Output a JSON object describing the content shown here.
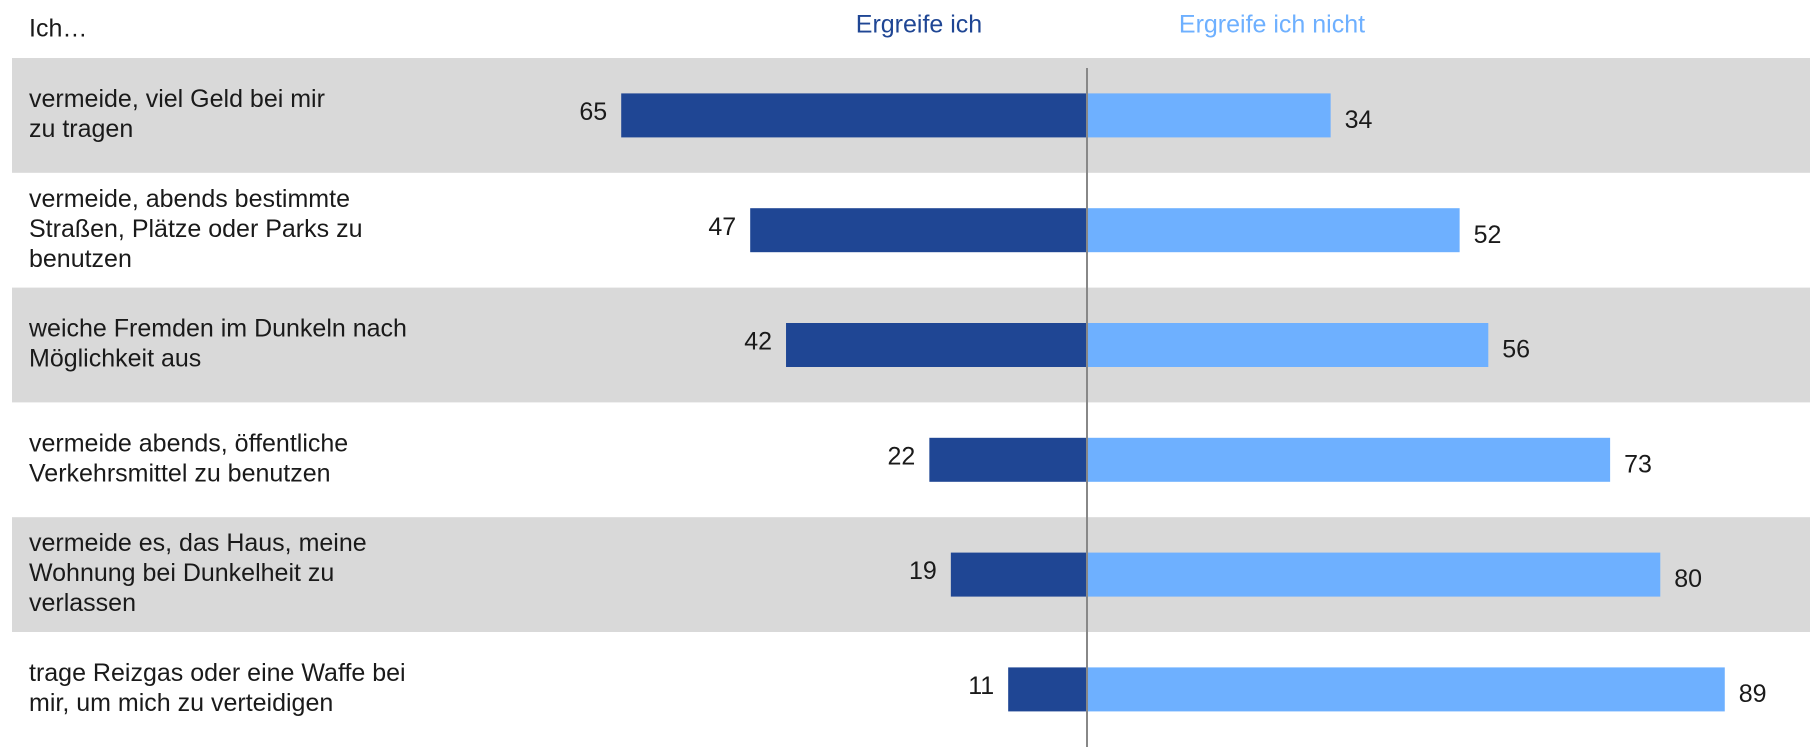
{
  "chart_data": {
    "type": "diverging-bar",
    "title": "Ich…",
    "categories": [
      [
        "vermeide, viel Geld bei mir",
        "zu tragen"
      ],
      [
        "vermeide, abends bestimmte",
        "Straßen, Plätze oder Parks zu",
        "benutzen"
      ],
      [
        "weiche Fremden im Dunkeln nach",
        "Möglichkeit aus"
      ],
      [
        "vermeide abends, öffentliche",
        "Verkehrsmittel zu benutzen"
      ],
      [
        "vermeide es, das Haus, meine",
        "Wohnung bei Dunkelheit zu",
        "verlassen"
      ],
      [
        "trage Reizgas oder eine Waffe bei",
        "mir, um mich zu verteidigen"
      ]
    ],
    "series": [
      {
        "name": "Ergreife ich",
        "color": "#1f4694",
        "side": "left",
        "values": [
          65,
          47,
          42,
          22,
          19,
          11
        ]
      },
      {
        "name": "Ergreife ich nicht",
        "color": "#6eb0ff",
        "side": "right",
        "values": [
          34,
          52,
          56,
          73,
          80,
          89
        ]
      }
    ],
    "xlim": [
      -100,
      100
    ],
    "row_shading": "#d9d9d9"
  }
}
